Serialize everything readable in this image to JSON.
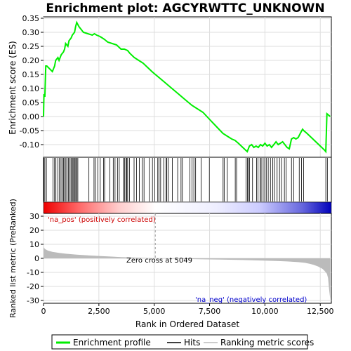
{
  "title": "Enrichment plot: AGCYRWTTC_UNKNOWN",
  "chart_data": [
    {
      "type": "line",
      "title": "Enrichment plot: AGCYRWTTC_UNKNOWN",
      "ylabel": "Enrichment score (ES)",
      "ylim": [
        -0.145,
        0.355
      ],
      "xlim": [
        0,
        13000
      ],
      "yticks": [
        -0.1,
        -0.05,
        0.0,
        0.05,
        0.1,
        0.15,
        0.2,
        0.25,
        0.3,
        0.35
      ],
      "ytick_labels": [
        "-0.10",
        "-0.05",
        "0.00",
        "0.05",
        "0.10",
        "0.15",
        "0.20",
        "0.25",
        "0.30",
        "0.35"
      ],
      "grid": true,
      "series": [
        {
          "name": "Enrichment profile",
          "color": "#00ee00",
          "x": [
            0,
            20,
            60,
            100,
            150,
            400,
            500,
            550,
            650,
            700,
            800,
            900,
            950,
            1000,
            1100,
            1150,
            1250,
            1300,
            1400,
            1450,
            1500,
            1600,
            1800,
            2000,
            2200,
            2300,
            2400,
            2550,
            2650,
            2750,
            2900,
            3100,
            3300,
            3500,
            3650,
            3800,
            3900,
            4100,
            4300,
            4500,
            4700,
            4900,
            5049,
            5200,
            5500,
            5800,
            6100,
            6400,
            6700,
            6900,
            7200,
            7500,
            7800,
            8100,
            8300,
            8500,
            8650,
            8800,
            9000,
            9200,
            9300,
            9400,
            9500,
            9600,
            9700,
            9800,
            9900,
            10000,
            10100,
            10200,
            10300,
            10400,
            10500,
            10600,
            10700,
            10800,
            10900,
            11000,
            11100,
            11200,
            11300,
            11400,
            11500,
            11600,
            11700,
            11750,
            11900,
            12100,
            12300,
            12500,
            12700,
            12750,
            12800,
            12950
          ],
          "y": [
            0.0,
            0.08,
            0.07,
            0.18,
            0.18,
            0.16,
            0.18,
            0.2,
            0.21,
            0.2,
            0.22,
            0.23,
            0.24,
            0.26,
            0.25,
            0.27,
            0.28,
            0.29,
            0.3,
            0.32,
            0.335,
            0.32,
            0.3,
            0.295,
            0.29,
            0.295,
            0.29,
            0.285,
            0.28,
            0.275,
            0.265,
            0.26,
            0.255,
            0.24,
            0.24,
            0.235,
            0.225,
            0.21,
            0.2,
            0.19,
            0.175,
            0.16,
            0.15,
            0.14,
            0.12,
            0.1,
            0.08,
            0.06,
            0.04,
            0.03,
            0.015,
            -0.01,
            -0.035,
            -0.06,
            -0.07,
            -0.08,
            -0.085,
            -0.095,
            -0.11,
            -0.125,
            -0.105,
            -0.1,
            -0.11,
            -0.105,
            -0.11,
            -0.1,
            -0.105,
            -0.095,
            -0.105,
            -0.1,
            -0.11,
            -0.1,
            -0.09,
            -0.1,
            -0.095,
            -0.09,
            -0.1,
            -0.11,
            -0.115,
            -0.08,
            -0.075,
            -0.08,
            -0.075,
            -0.06,
            -0.045,
            -0.05,
            -0.06,
            -0.075,
            -0.09,
            -0.105,
            -0.12,
            -0.125,
            0.01,
            0.0
          ]
        }
      ]
    },
    {
      "type": "scatter",
      "name": "Hits",
      "color": "#000000",
      "hit_ranks": [
        20,
        60,
        130,
        430,
        500,
        560,
        650,
        720,
        790,
        850,
        900,
        950,
        1010,
        1060,
        1130,
        1180,
        1240,
        1290,
        1330,
        1370,
        1420,
        1460,
        1510,
        1550,
        2050,
        2280,
        2340,
        2450,
        2560,
        2710,
        2760,
        2990,
        3150,
        3230,
        3340,
        3420,
        3600,
        3660,
        3720,
        3760,
        3800,
        3880,
        4090,
        4200,
        4330,
        4460,
        4540,
        4780,
        4920,
        5020,
        5160,
        5220,
        5290,
        5430,
        5530,
        5570,
        5640,
        5820,
        6060,
        6210,
        6270,
        6610,
        6710,
        6790,
        6870,
        7120,
        7490,
        8110,
        8160,
        8300,
        8660,
        8720,
        9150,
        9210,
        9260,
        9310,
        9440,
        9620,
        9690,
        9780,
        9830,
        9920,
        9990,
        10060,
        10150,
        10250,
        10350,
        10430,
        10550,
        10660,
        10750,
        10880,
        10960,
        11200,
        11300,
        11550,
        11650,
        11750,
        12750,
        12820
      ]
    },
    {
      "type": "heatmap",
      "name": "Rank color bar",
      "palette_from_to": [
        "#ee0000",
        "#ffffff",
        "#0000cc"
      ],
      "zero_cross_rank": 5049
    },
    {
      "type": "area",
      "name": "Ranking metric scores",
      "xlabel": "Rank in Ordered Dataset",
      "ylabel": "Ranked list metric (PreRanked)",
      "xlim": [
        0,
        13000
      ],
      "ylim": [
        -32,
        32
      ],
      "xticks": [
        0,
        2500,
        5000,
        7500,
        10000,
        12500
      ],
      "xtick_labels": [
        "0",
        "2,500",
        "5,000",
        "7,500",
        "10,000",
        "12,500"
      ],
      "yticks": [
        -30,
        -20,
        -10,
        0,
        10,
        20,
        30
      ],
      "ytick_labels": [
        "-30",
        "-20",
        "-10",
        "0",
        "10",
        "20",
        "30"
      ],
      "color": "#bbbbbb",
      "x": [
        0,
        20,
        80,
        200,
        400,
        700,
        1000,
        1500,
        2000,
        2500,
        3000,
        3500,
        4000,
        4500,
        5049,
        6000,
        7000,
        8000,
        9000,
        10000,
        10500,
        11000,
        11500,
        11800,
        12000,
        12200,
        12400,
        12600,
        12700,
        12800,
        12850,
        12900,
        12950
      ],
      "values": [
        9,
        7.5,
        6.5,
        5.5,
        4.6,
        3.9,
        3.3,
        2.6,
        2.1,
        1.7,
        1.3,
        0.9,
        0.6,
        0.3,
        0.0,
        -0.3,
        -0.6,
        -0.9,
        -1.2,
        -1.6,
        -1.9,
        -2.2,
        -2.7,
        -3.2,
        -3.8,
        -4.6,
        -5.8,
        -7.5,
        -9,
        -11,
        -14,
        -22,
        -29
      ],
      "annotations": {
        "zero_cross": "Zero cross at 5049",
        "pos": "'na_pos' (positively correlated)",
        "neg": "'na_neg' (negatively correlated)"
      }
    }
  ],
  "legend": {
    "items": [
      {
        "label": "Enrichment profile",
        "color": "#00ee00"
      },
      {
        "label": "Hits",
        "color": "#000000"
      },
      {
        "label": "Ranking metric scores",
        "color": "#bbbbbb"
      }
    ]
  }
}
